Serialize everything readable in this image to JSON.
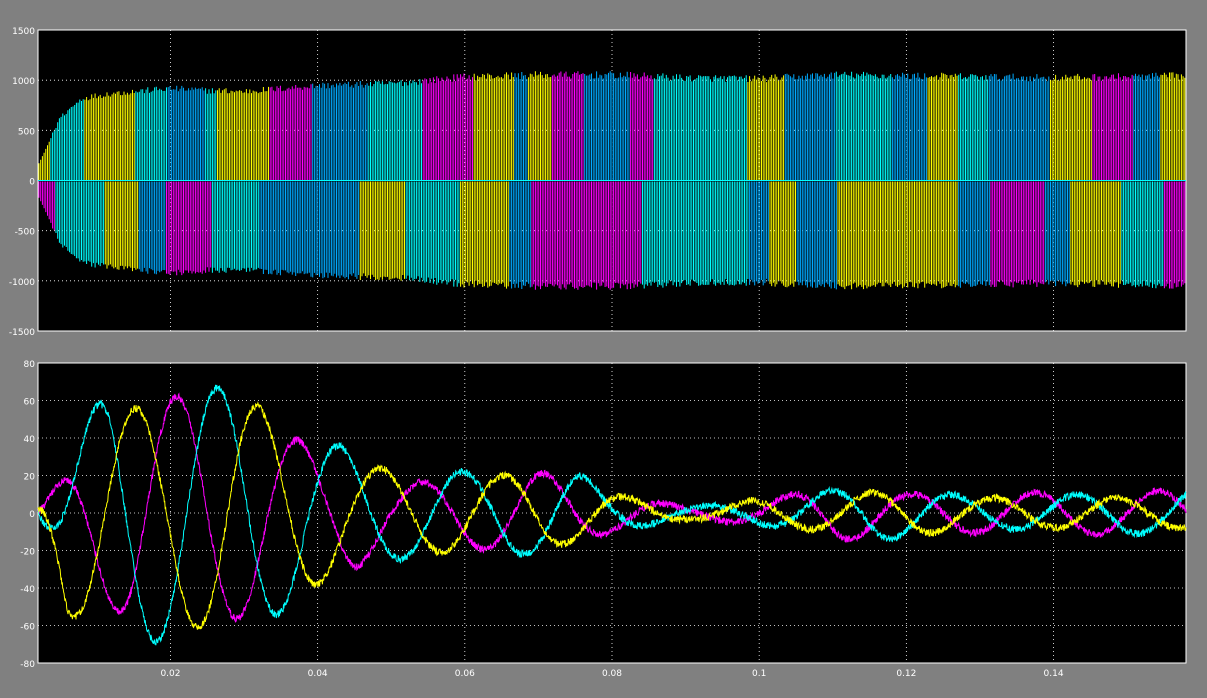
{
  "window": {
    "colors": {
      "background": "#808080",
      "axes_bg": "#000000",
      "axes_fg": "#ffffff",
      "grid": "#ffffff"
    }
  },
  "chart_data": [
    {
      "type": "line",
      "panel": "top",
      "title": "",
      "xlabel": "",
      "ylabel": "",
      "xlim": [
        0.002,
        0.158
      ],
      "ylim": [
        -1500,
        1500
      ],
      "yticks": [
        "1500",
        "1000",
        "500",
        "0",
        "-500",
        "-1000",
        "-1500"
      ],
      "xticks": [],
      "grid": true,
      "legend": "none",
      "envelope_positive": {
        "x": [
          0.002,
          0.005,
          0.008,
          0.012,
          0.02,
          0.025,
          0.03,
          0.04,
          0.05,
          0.06,
          0.07,
          0.08,
          0.09,
          0.1,
          0.11,
          0.12,
          0.13,
          0.14,
          0.158
        ],
        "y": [
          150,
          650,
          850,
          900,
          950,
          930,
          920,
          980,
          1000,
          1070,
          1090,
          1090,
          1060,
          1050,
          1090,
          1080,
          1070,
          1060,
          1080
        ]
      },
      "series": [
        {
          "color": "#ffff00"
        },
        {
          "color": "#ff00ff"
        },
        {
          "color": "#00ffff"
        },
        {
          "color": "#00aaff"
        }
      ]
    },
    {
      "type": "line",
      "panel": "bottom",
      "title": "",
      "xlabel": "",
      "ylabel": "",
      "xlim": [
        0.002,
        0.158
      ],
      "ylim": [
        -80,
        80
      ],
      "yticks": [
        "80",
        "60",
        "40",
        "20",
        "0",
        "-20",
        "-40",
        "-60",
        "-80"
      ],
      "xticks": [
        "0.02",
        "0.04",
        "0.06",
        "0.08",
        "0.1",
        "0.12",
        "0.14"
      ],
      "grid": true,
      "legend": "none",
      "series": [
        {
          "color": "#ff00ff",
          "phase_deg": 0,
          "amp_x": [
            0.002,
            0.008,
            0.015,
            0.025,
            0.03,
            0.04,
            0.045,
            0.05,
            0.07,
            0.08,
            0.09,
            0.1,
            0.11,
            0.12,
            0.158
          ],
          "amp_y": [
            0,
            33,
            62,
            62,
            55,
            33,
            30,
            15,
            22,
            10,
            3,
            6,
            15,
            10,
            12
          ]
        },
        {
          "color": "#00ffff",
          "phase_deg": 120,
          "amp_x": [
            0.002,
            0.008,
            0.012,
            0.03,
            0.04,
            0.05,
            0.06,
            0.075,
            0.08,
            0.09,
            0.1,
            0.11,
            0.115,
            0.13,
            0.158
          ],
          "amp_y": [
            0,
            45,
            70,
            66,
            40,
            25,
            22,
            22,
            10,
            3,
            6,
            12,
            15,
            8,
            12
          ]
        },
        {
          "color": "#ffff00",
          "phase_deg": 240,
          "amp_x": [
            0.002,
            0.006,
            0.018,
            0.028,
            0.037,
            0.045,
            0.06,
            0.07,
            0.08,
            0.09,
            0.1,
            0.12,
            0.13,
            0.158
          ],
          "amp_y": [
            5,
            55,
            56,
            65,
            46,
            25,
            20,
            20,
            10,
            3,
            7,
            12,
            8,
            8
          ]
        }
      ],
      "frequency_hz": 60
    }
  ]
}
